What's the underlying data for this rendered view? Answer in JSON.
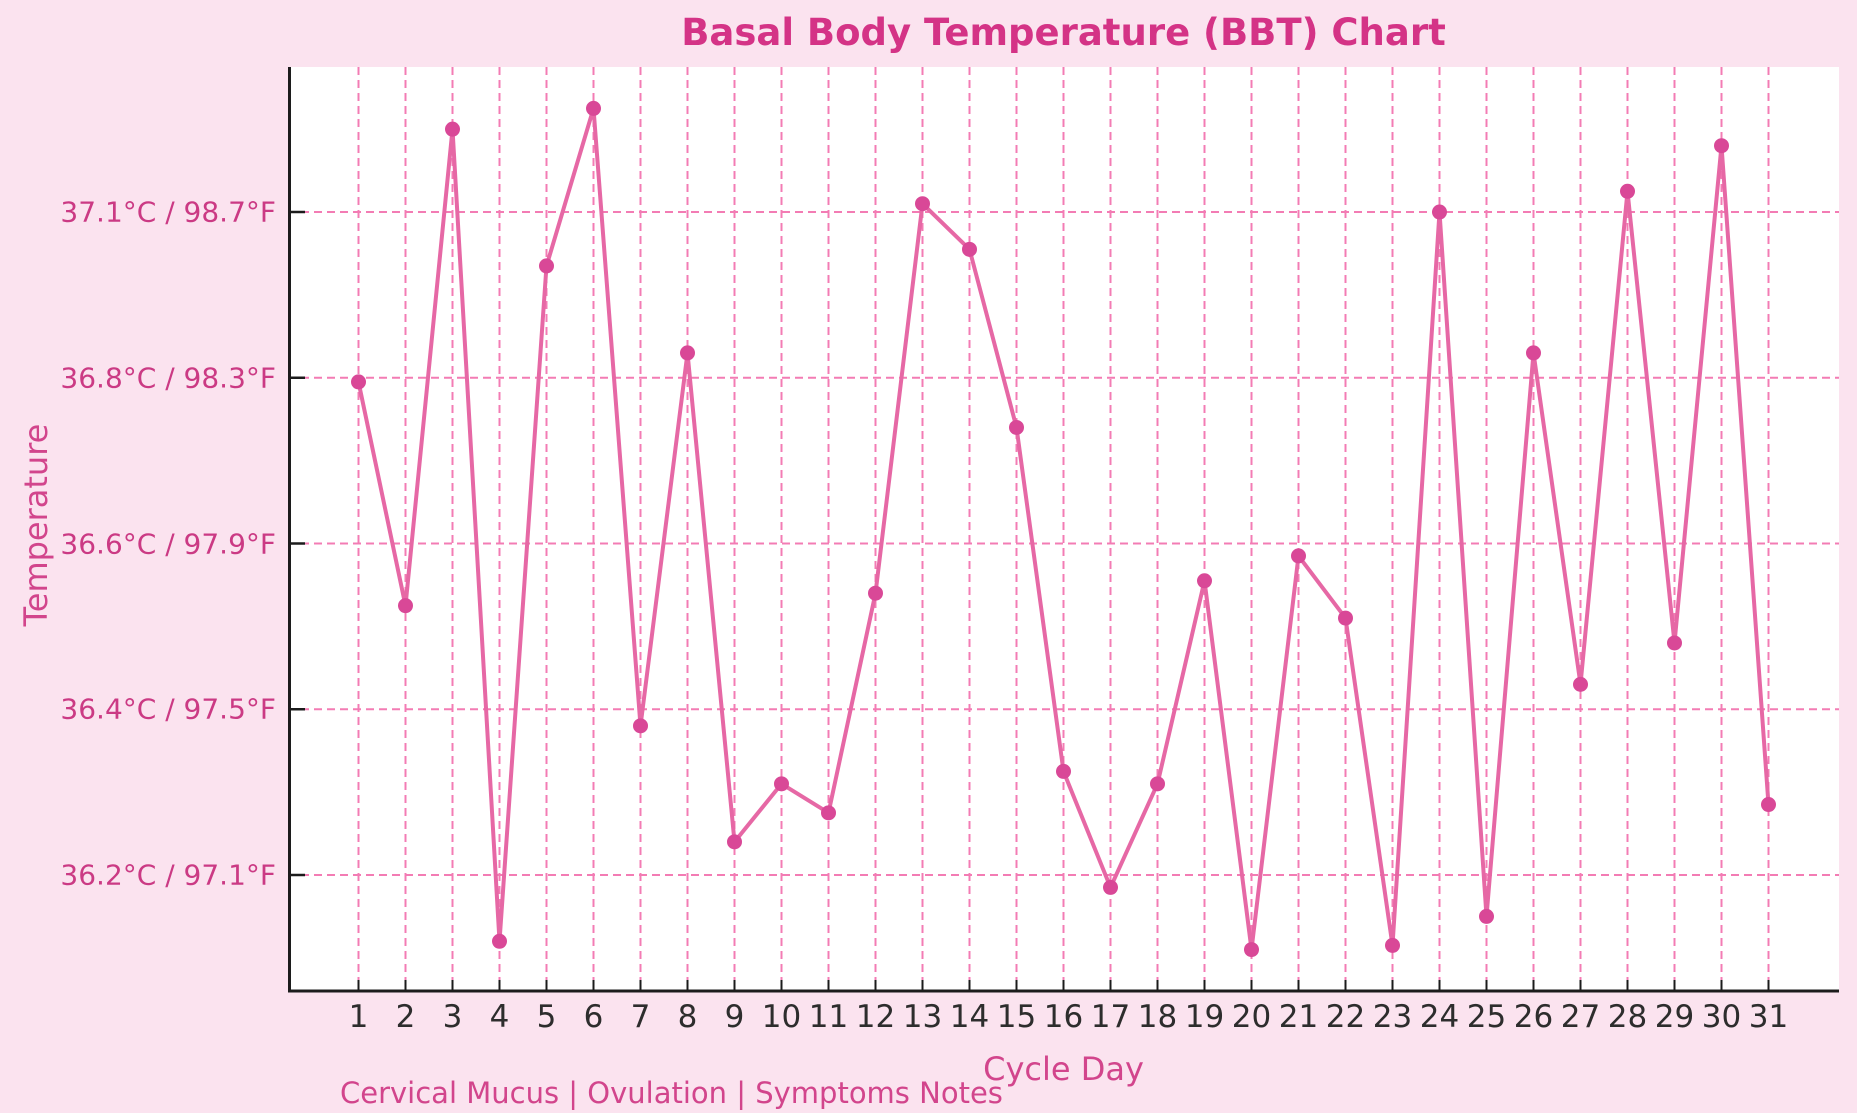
{
  "title": "Basal Body Temperature (BBT) Chart",
  "chart_data": {
    "type": "line",
    "title": "Basal Body Temperature (BBT) Chart",
    "xlabel": "Cycle Day",
    "ylabel": "Temperature",
    "caption": "Cervical Mucus | Ovulation | Symptoms Notes",
    "legend": "none",
    "grid": "dashed pink vertical line per day and horizontal line per labeled temperature tick, white plot background",
    "x": [
      1,
      2,
      3,
      4,
      5,
      6,
      7,
      8,
      9,
      10,
      11,
      12,
      13,
      14,
      15,
      16,
      17,
      18,
      19,
      20,
      21,
      22,
      23,
      24,
      25,
      26,
      27,
      28,
      29,
      30,
      31
    ],
    "series": [
      {
        "name": "BBT",
        "unit": "°F",
        "values": [
          98.29,
          97.75,
          98.9,
          96.94,
          98.57,
          98.95,
          97.46,
          98.36,
          97.18,
          97.32,
          97.25,
          97.78,
          98.72,
          98.61,
          98.18,
          97.35,
          97.07,
          97.32,
          97.81,
          96.92,
          97.87,
          97.72,
          96.93,
          98.7,
          97.0,
          98.36,
          97.56,
          98.75,
          97.66,
          98.86,
          97.27
        ]
      }
    ],
    "y_ticks": [
      {
        "value_f": 98.7,
        "label": "37.1°C / 98.7°F"
      },
      {
        "value_f": 98.3,
        "label": "36.8°C / 98.3°F"
      },
      {
        "value_f": 97.9,
        "label": "36.6°C / 97.9°F"
      },
      {
        "value_f": 97.5,
        "label": "36.4°C / 97.5°F"
      },
      {
        "value_f": 97.1,
        "label": "36.2°C / 97.1°F"
      }
    ],
    "ylim_f": [
      96.82,
      99.05
    ],
    "xlim": [
      -0.5,
      32.5
    ]
  },
  "colors": {
    "figure_background": "#fbe3ef",
    "plot_background": "#ffffff",
    "gridline": "#f37cb4",
    "line": "#e668a5",
    "marker": "#d94897",
    "title_text": "#d43386",
    "y_tick_text": "#cb3a84",
    "pink_label_text": "#d2458c",
    "x_tick_text": "#2d2d2d",
    "axis_spine": "#1c1c1c"
  }
}
